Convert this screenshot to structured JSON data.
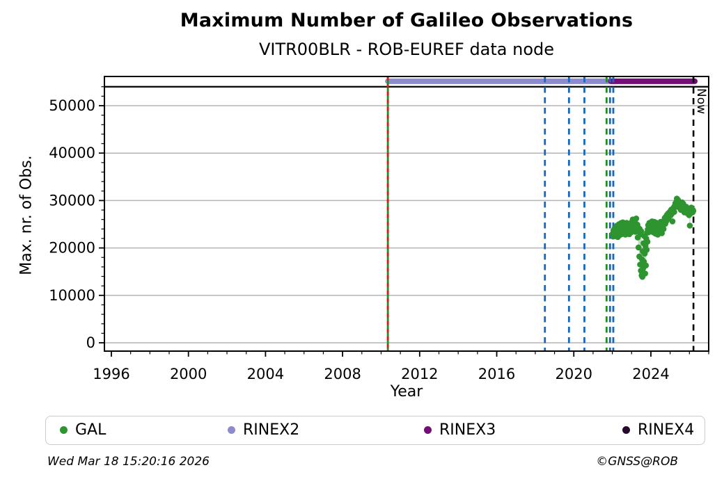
{
  "footer": {
    "generated": "Wed Mar 18 15:20:16 2026",
    "credit": "©GNSS@ROB"
  },
  "legend": {
    "items": [
      {
        "label": "GAL",
        "color": "#2e9430"
      },
      {
        "label": "RINEX2",
        "color": "#8b8bcd"
      },
      {
        "label": "RINEX3",
        "color": "#750d79"
      },
      {
        "label": "RINEX4",
        "color": "#26092b"
      }
    ]
  },
  "chart_data": {
    "type": "scatter",
    "title": "Maximum Number of Galileo Observations",
    "subtitle": "VITR00BLR - ROB-EUREF data node",
    "xlabel": "Year",
    "ylabel": "Max. nr. of Obs.",
    "xlim": [
      1995.64,
      2027.0
    ],
    "ylim": [
      -1760,
      56160
    ],
    "x_ticks": {
      "major_values": [
        1996,
        2000,
        2004,
        2008,
        2012,
        2016,
        2020,
        2024
      ],
      "major_labels": [
        "1996",
        "2000",
        "2004",
        "2008",
        "2012",
        "2016",
        "2020",
        "2024"
      ],
      "minor_step": 1
    },
    "y_ticks": {
      "major_values": [
        0,
        10000,
        20000,
        30000,
        40000,
        50000
      ],
      "major_labels": [
        "0",
        "10000",
        "20000",
        "30000",
        "40000",
        "50000"
      ],
      "minor_step": 2000,
      "minor_max": 54000
    },
    "grid": {
      "horizontal_majors": true,
      "vertical": false,
      "color": "#b3b3b3"
    },
    "max_line": {
      "y": 54000,
      "color": "#000000"
    },
    "availability_bars": [
      {
        "name": "RINEX2",
        "x_start": 2010.35,
        "x_end": 2021.78,
        "y": 55150,
        "color": "#8b8bcd"
      },
      {
        "name": "RINEX3",
        "x_start": 2021.92,
        "x_end": 2026.28,
        "y": 55150,
        "color": "#750d79"
      }
    ],
    "event_lines": [
      {
        "x": 2010.35,
        "color": "#228B22",
        "style": "solid",
        "dash": ""
      },
      {
        "x": 2010.35,
        "color": "#cf1f1f",
        "style": "dashed",
        "dash": "5.5 5.5"
      },
      {
        "x": 2018.5,
        "color": "#1668bd",
        "style": "dashed",
        "dash": "8.5 6.5"
      },
      {
        "x": 2019.75,
        "color": "#1668bd",
        "style": "dashed",
        "dash": "8.5 6.5"
      },
      {
        "x": 2020.55,
        "color": "#1668bd",
        "style": "dashed",
        "dash": "8.5 6.5"
      },
      {
        "x": 2021.7,
        "color": "#228B22",
        "style": "dashed",
        "dash": "8.5 6.5"
      },
      {
        "x": 2021.88,
        "color": "#1668bd",
        "style": "dashed",
        "dash": "8.5 6.5"
      },
      {
        "x": 2022.05,
        "color": "#1668bd",
        "style": "dashed",
        "dash": "8.5 6.5"
      }
    ],
    "now_line": {
      "x": 2026.21,
      "label": "Now",
      "color": "#000000",
      "style": "dashed"
    },
    "series": [
      {
        "name": "GAL",
        "color": "#2e9430",
        "marker": "circle",
        "points": [
          [
            2022.02,
            23000
          ],
          [
            2022.04,
            22400
          ],
          [
            2022.06,
            23700
          ],
          [
            2022.08,
            22800
          ],
          [
            2022.1,
            23400
          ],
          [
            2022.12,
            24100
          ],
          [
            2022.14,
            22500
          ],
          [
            2022.16,
            23200
          ],
          [
            2022.18,
            24300
          ],
          [
            2022.2,
            22900
          ],
          [
            2022.22,
            23600
          ],
          [
            2022.24,
            24700
          ],
          [
            2022.26,
            23100
          ],
          [
            2022.28,
            22300
          ],
          [
            2022.3,
            24200
          ],
          [
            2022.32,
            23500
          ],
          [
            2022.34,
            25000
          ],
          [
            2022.36,
            23900
          ],
          [
            2022.38,
            22700
          ],
          [
            2022.4,
            24500
          ],
          [
            2022.42,
            23300
          ],
          [
            2022.44,
            25200
          ],
          [
            2022.46,
            24000
          ],
          [
            2022.48,
            22900
          ],
          [
            2022.5,
            24400
          ],
          [
            2022.52,
            23600
          ],
          [
            2022.54,
            25400
          ],
          [
            2022.56,
            24100
          ],
          [
            2022.58,
            23000
          ],
          [
            2022.6,
            24700
          ],
          [
            2022.62,
            23400
          ],
          [
            2022.64,
            25100
          ],
          [
            2022.66,
            24300
          ],
          [
            2022.68,
            22800
          ],
          [
            2022.7,
            24600
          ],
          [
            2022.72,
            23700
          ],
          [
            2022.74,
            25300
          ],
          [
            2022.76,
            24000
          ],
          [
            2022.78,
            23100
          ],
          [
            2022.8,
            24800
          ],
          [
            2022.82,
            23500
          ],
          [
            2022.84,
            25000
          ],
          [
            2022.86,
            24200
          ],
          [
            2022.88,
            22900
          ],
          [
            2022.9,
            24500
          ],
          [
            2022.92,
            23800
          ],
          [
            2022.94,
            25200
          ],
          [
            2022.96,
            24100
          ],
          [
            2022.98,
            23300
          ],
          [
            2023.0,
            24600
          ],
          [
            2023.02,
            25500
          ],
          [
            2023.04,
            24200
          ],
          [
            2023.06,
            26000
          ],
          [
            2023.08,
            24900
          ],
          [
            2023.1,
            23700
          ],
          [
            2023.12,
            25300
          ],
          [
            2023.14,
            24400
          ],
          [
            2023.16,
            25800
          ],
          [
            2023.18,
            24100
          ],
          [
            2023.2,
            23400
          ],
          [
            2023.22,
            25100
          ],
          [
            2023.24,
            26200
          ],
          [
            2023.26,
            24700
          ],
          [
            2023.28,
            23800
          ],
          [
            2023.3,
            24900
          ],
          [
            2023.32,
            22200
          ],
          [
            2023.34,
            24300
          ],
          [
            2023.36,
            20100
          ],
          [
            2023.38,
            23600
          ],
          [
            2023.4,
            18200
          ],
          [
            2023.42,
            24000
          ],
          [
            2023.44,
            16500
          ],
          [
            2023.46,
            22900
          ],
          [
            2023.48,
            15200
          ],
          [
            2023.5,
            23500
          ],
          [
            2023.52,
            14200
          ],
          [
            2023.54,
            17600
          ],
          [
            2023.56,
            13900
          ],
          [
            2023.58,
            19300
          ],
          [
            2023.6,
            15700
          ],
          [
            2023.62,
            21000
          ],
          [
            2023.64,
            17100
          ],
          [
            2023.66,
            22500
          ],
          [
            2023.68,
            18800
          ],
          [
            2023.7,
            14600
          ],
          [
            2023.72,
            20400
          ],
          [
            2023.74,
            16300
          ],
          [
            2023.76,
            22000
          ],
          [
            2023.78,
            19600
          ],
          [
            2023.8,
            23200
          ],
          [
            2023.82,
            21300
          ],
          [
            2023.84,
            23900
          ],
          [
            2023.86,
            24800
          ],
          [
            2023.88,
            23300
          ],
          [
            2023.9,
            24500
          ],
          [
            2023.92,
            25300
          ],
          [
            2023.94,
            23700
          ],
          [
            2023.96,
            24900
          ],
          [
            2023.98,
            23500
          ],
          [
            2024.0,
            25100
          ],
          [
            2024.03,
            24200
          ],
          [
            2024.06,
            25600
          ],
          [
            2024.09,
            24400
          ],
          [
            2024.12,
            23300
          ],
          [
            2024.15,
            24800
          ],
          [
            2024.18,
            25500
          ],
          [
            2024.21,
            24100
          ],
          [
            2024.24,
            23000
          ],
          [
            2024.27,
            24600
          ],
          [
            2024.3,
            25300
          ],
          [
            2024.33,
            24000
          ],
          [
            2024.36,
            22800
          ],
          [
            2024.39,
            24400
          ],
          [
            2024.42,
            25100
          ],
          [
            2024.45,
            23600
          ],
          [
            2024.48,
            24800
          ],
          [
            2024.51,
            25500
          ],
          [
            2024.54,
            24200
          ],
          [
            2024.57,
            23100
          ],
          [
            2024.6,
            24700
          ],
          [
            2024.63,
            25400
          ],
          [
            2024.66,
            24000
          ],
          [
            2024.69,
            25800
          ],
          [
            2024.72,
            26300
          ],
          [
            2024.75,
            25100
          ],
          [
            2024.78,
            26600
          ],
          [
            2024.81,
            25700
          ],
          [
            2024.84,
            27000
          ],
          [
            2024.87,
            26100
          ],
          [
            2024.9,
            27300
          ],
          [
            2024.93,
            26500
          ],
          [
            2024.96,
            27100
          ],
          [
            2025.0,
            27700
          ],
          [
            2025.03,
            26900
          ],
          [
            2025.06,
            28100
          ],
          [
            2025.09,
            27200
          ],
          [
            2025.12,
            25600
          ],
          [
            2025.15,
            27900
          ],
          [
            2025.18,
            28500
          ],
          [
            2025.21,
            27600
          ],
          [
            2025.24,
            28900
          ],
          [
            2025.27,
            29400
          ],
          [
            2025.3,
            28700
          ],
          [
            2025.33,
            29800
          ],
          [
            2025.35,
            30400
          ],
          [
            2025.38,
            29500
          ],
          [
            2025.41,
            30100
          ],
          [
            2025.44,
            29000
          ],
          [
            2025.47,
            29600
          ],
          [
            2025.5,
            28400
          ],
          [
            2025.53,
            29100
          ],
          [
            2025.56,
            28000
          ],
          [
            2025.59,
            28800
          ],
          [
            2025.62,
            29600
          ],
          [
            2025.65,
            28900
          ],
          [
            2025.68,
            29300
          ],
          [
            2025.71,
            28200
          ],
          [
            2025.74,
            27500
          ],
          [
            2025.77,
            28400
          ],
          [
            2025.8,
            27800
          ],
          [
            2025.83,
            28700
          ],
          [
            2025.86,
            28000
          ],
          [
            2025.89,
            27300
          ],
          [
            2025.92,
            28100
          ],
          [
            2025.95,
            27600
          ],
          [
            2025.98,
            26900
          ],
          [
            2026.0,
            27900
          ],
          [
            2026.02,
            24700
          ],
          [
            2026.04,
            27200
          ],
          [
            2026.06,
            28300
          ],
          [
            2026.08,
            27700
          ],
          [
            2026.1,
            28500
          ],
          [
            2026.12,
            27900
          ],
          [
            2026.14,
            28200
          ],
          [
            2026.16,
            27500
          ],
          [
            2026.18,
            28000
          ],
          [
            2026.2,
            27800
          ]
        ]
      }
    ]
  }
}
